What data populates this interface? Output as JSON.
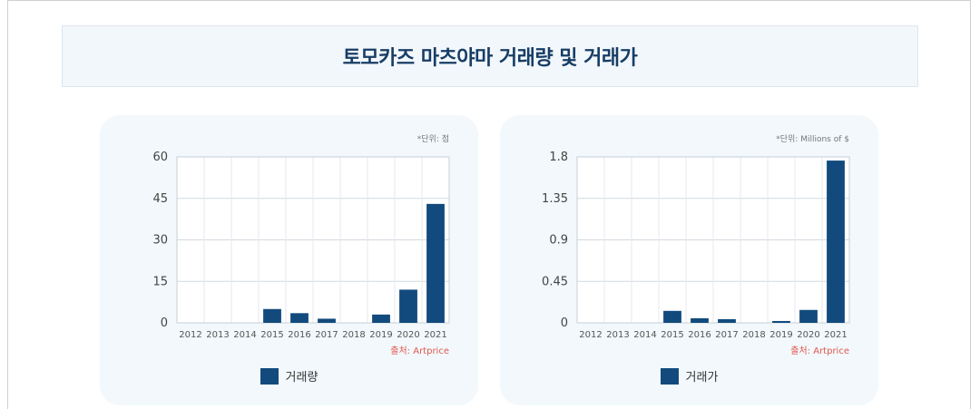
{
  "page": {
    "title": "토모카즈 마츠야마 거래량 및 거래가"
  },
  "colors": {
    "bar": "#124a7d",
    "source": "#e0574f",
    "grid": "#d3d9df",
    "axis_text": "#555555"
  },
  "charts": [
    {
      "unit": "*단위: 점",
      "source": "출처: Artprice",
      "legend_label": "거래량",
      "y_ticks": [
        "60",
        "45",
        "30",
        "15",
        "0"
      ]
    },
    {
      "unit": "*단위: Millions of $",
      "source": "출처: Artprice",
      "legend_label": "거래가",
      "y_ticks": [
        "1.8",
        "1.35",
        "0.9",
        "0.45",
        "0"
      ]
    }
  ],
  "chart_data": [
    {
      "type": "bar",
      "categories": [
        "2012",
        "2013",
        "2014",
        "2015",
        "2016",
        "2017",
        "2018",
        "2019",
        "2020",
        "2021"
      ],
      "series": [
        {
          "name": "거래량",
          "values": [
            0,
            0,
            0,
            5,
            3.5,
            1.5,
            0,
            3,
            12,
            43
          ]
        }
      ],
      "ylim": [
        0,
        60
      ],
      "yticks": [
        0,
        15,
        30,
        45,
        60
      ],
      "grid": true,
      "legend": "bottom"
    },
    {
      "type": "bar",
      "categories": [
        "2012",
        "2013",
        "2014",
        "2015",
        "2016",
        "2017",
        "2018",
        "2019",
        "2020",
        "2021"
      ],
      "series": [
        {
          "name": "거래가",
          "values": [
            0,
            0,
            0,
            0.13,
            0.05,
            0.04,
            0,
            0.02,
            0.14,
            1.76
          ]
        }
      ],
      "ylim": [
        0,
        1.8
      ],
      "yticks": [
        0,
        0.45,
        0.9,
        1.35,
        1.8
      ],
      "grid": true,
      "legend": "bottom"
    }
  ]
}
